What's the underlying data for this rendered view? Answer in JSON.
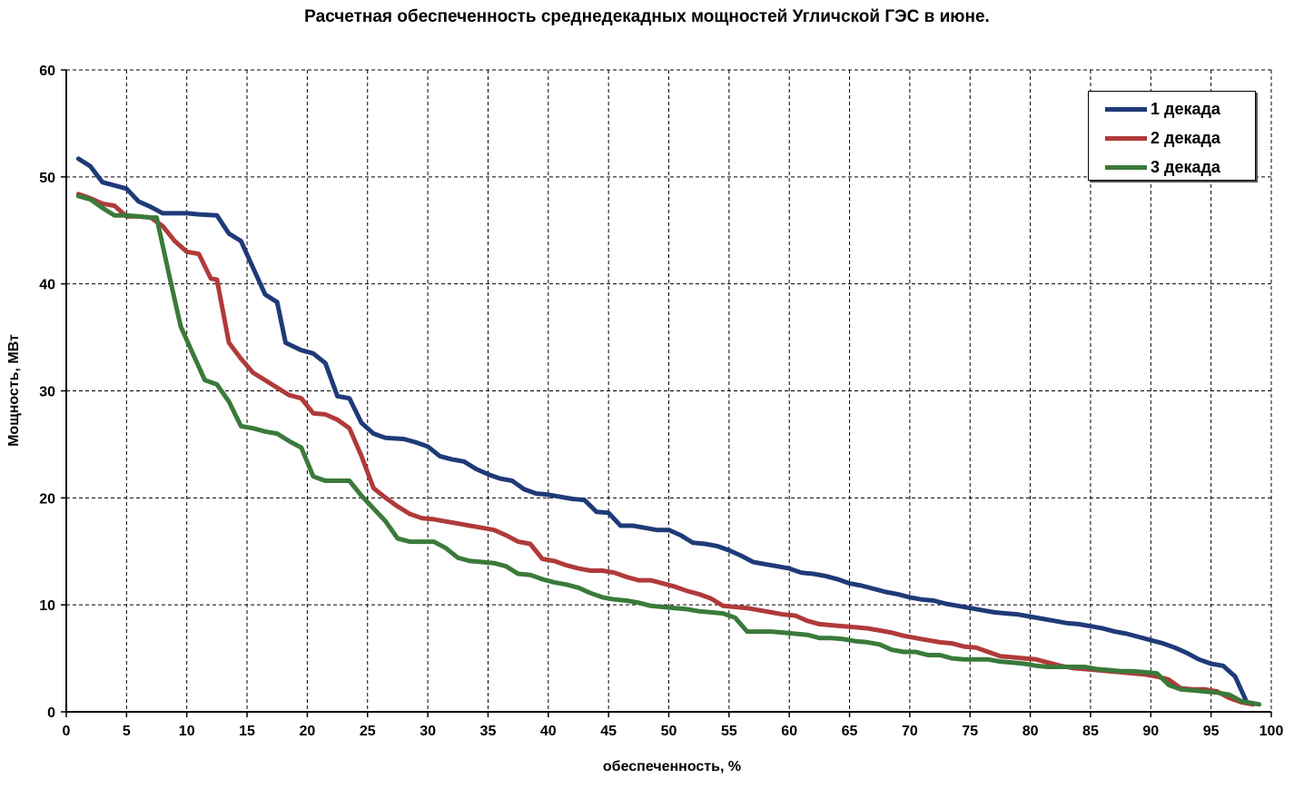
{
  "chart_data": {
    "type": "line",
    "title": "Расчетная обеспеченность среднедекадных мощностей Угличской ГЭС в июне.",
    "xlabel": "обеспеченность,  %",
    "ylabel": "Мощность, МВт",
    "xlim": [
      0,
      100
    ],
    "ylim": [
      0,
      60
    ],
    "xticks": [
      "0",
      "5",
      "10",
      "15",
      "20",
      "25",
      "30",
      "35",
      "40",
      "45",
      "50",
      "55",
      "60",
      "65",
      "70",
      "75",
      "80",
      "85",
      "90",
      "95",
      "100"
    ],
    "yticks": [
      "0",
      "10",
      "20",
      "30",
      "40",
      "50",
      "60"
    ],
    "grid": true,
    "legend_position": "top-right",
    "series": [
      {
        "name": "1 декада",
        "color": "#1f3a78",
        "x": [
          1,
          2,
          3,
          5,
          6,
          7,
          8,
          10,
          11,
          12.5,
          13.5,
          14.5,
          15.5,
          16.5,
          17.5,
          18.2,
          19.5,
          20.5,
          21.5,
          22.5,
          23.5,
          24.5,
          25.5,
          26.5,
          28,
          29,
          30,
          31,
          32,
          33,
          34,
          35,
          36,
          37,
          38,
          39,
          40,
          41,
          42,
          43,
          44,
          45,
          46,
          47,
          48,
          49,
          50,
          51,
          52,
          53,
          54,
          55,
          56,
          57,
          58,
          59,
          60,
          61,
          62,
          63,
          64,
          65,
          66,
          67,
          68,
          69,
          70,
          71,
          72,
          73,
          74,
          75,
          76,
          77,
          78,
          79,
          80,
          81,
          82,
          83,
          84,
          85,
          86,
          87,
          88,
          89,
          90,
          91,
          92,
          93,
          94,
          95,
          96,
          97,
          98
        ],
        "values": [
          51.7,
          51.0,
          49.5,
          48.9,
          47.7,
          47.2,
          46.6,
          46.6,
          46.5,
          46.4,
          44.7,
          44.0,
          41.5,
          39.0,
          38.3,
          34.5,
          33.8,
          33.5,
          32.6,
          29.5,
          29.3,
          27.0,
          26.0,
          25.6,
          25.5,
          25.2,
          24.8,
          23.9,
          23.6,
          23.4,
          22.7,
          22.2,
          21.8,
          21.6,
          20.8,
          20.4,
          20.3,
          20.1,
          19.9,
          19.8,
          18.7,
          18.6,
          17.4,
          17.4,
          17.2,
          17.0,
          17.0,
          16.5,
          15.8,
          15.7,
          15.5,
          15.1,
          14.6,
          14.0,
          13.8,
          13.6,
          13.4,
          13.0,
          12.9,
          12.7,
          12.4,
          12.0,
          11.8,
          11.5,
          11.2,
          11.0,
          10.7,
          10.5,
          10.4,
          10.1,
          9.9,
          9.7,
          9.5,
          9.3,
          9.2,
          9.1,
          8.9,
          8.7,
          8.5,
          8.3,
          8.2,
          8.0,
          7.8,
          7.5,
          7.3,
          7.0,
          6.7,
          6.4,
          6.0,
          5.5,
          4.9,
          4.5,
          4.3,
          3.3,
          0.8
        ]
      },
      {
        "name": "2 декада",
        "color": "#b03a3a",
        "x": [
          1,
          2,
          3,
          4,
          5,
          6,
          7,
          8,
          9,
          10,
          11,
          12,
          12.5,
          13.5,
          14.5,
          15.5,
          16.5,
          17.5,
          18.5,
          19.5,
          20.5,
          21.5,
          22.5,
          23.5,
          24.5,
          25.5,
          26.5,
          27.5,
          28.5,
          29.5,
          30.5,
          31.5,
          32.5,
          33.5,
          34.5,
          35.5,
          36.5,
          37.5,
          38.5,
          39.5,
          40.5,
          41.5,
          42.5,
          43.5,
          44.5,
          45.5,
          46.5,
          47.5,
          48.5,
          49.5,
          50.5,
          51.5,
          52.5,
          53.5,
          54.5,
          55.5,
          56.5,
          57.5,
          58.5,
          59.5,
          60.5,
          61.5,
          62.5,
          63.5,
          64.5,
          65.5,
          66.5,
          67.5,
          68.5,
          69.5,
          70.5,
          71.5,
          72.5,
          73.5,
          74.5,
          75.5,
          76.5,
          77.5,
          78.5,
          79.5,
          80.5,
          81.5,
          82.5,
          83.5,
          84.5,
          85.5,
          86.5,
          87.5,
          88.5,
          89.5,
          90.5,
          91.5,
          92.5,
          93.5,
          94.5,
          95.5,
          96.5,
          97.5,
          98.5
        ],
        "values": [
          48.4,
          48.0,
          47.5,
          47.3,
          46.3,
          46.3,
          46.2,
          45.4,
          44.0,
          43.0,
          42.8,
          40.5,
          40.4,
          34.5,
          33.0,
          31.7,
          31.0,
          30.3,
          29.6,
          29.3,
          27.9,
          27.8,
          27.3,
          26.5,
          23.9,
          20.9,
          20.0,
          19.2,
          18.5,
          18.1,
          18.0,
          17.8,
          17.6,
          17.4,
          17.2,
          17.0,
          16.5,
          15.9,
          15.7,
          14.3,
          14.1,
          13.7,
          13.4,
          13.2,
          13.2,
          13.0,
          12.6,
          12.3,
          12.3,
          12.0,
          11.7,
          11.3,
          11.0,
          10.6,
          9.9,
          9.8,
          9.7,
          9.5,
          9.3,
          9.1,
          9.0,
          8.5,
          8.2,
          8.1,
          8.0,
          7.9,
          7.8,
          7.6,
          7.4,
          7.1,
          6.9,
          6.7,
          6.5,
          6.4,
          6.1,
          6.0,
          5.6,
          5.2,
          5.1,
          5.0,
          4.9,
          4.6,
          4.3,
          4.1,
          4.0,
          3.9,
          3.8,
          3.7,
          3.6,
          3.5,
          3.3,
          3.0,
          2.2,
          2.1,
          2.1,
          1.9,
          1.3,
          0.9,
          0.7
        ]
      },
      {
        "name": "3 декада",
        "color": "#3a7a3a",
        "x": [
          1,
          2,
          3,
          4,
          5,
          6,
          7,
          7.5,
          8.5,
          9.5,
          10.5,
          11.5,
          12.5,
          13.5,
          14.5,
          15.5,
          16.5,
          17.5,
          18.5,
          19.5,
          20.5,
          21.5,
          22.5,
          23.5,
          24.5,
          25.5,
          26.5,
          27.5,
          28.5,
          29.5,
          30.5,
          31.5,
          32.5,
          33.5,
          34.5,
          35.5,
          36.5,
          37.5,
          38.5,
          39.5,
          40.5,
          41.5,
          42.5,
          43.5,
          44.5,
          45.5,
          46.5,
          47.5,
          48.5,
          49.5,
          50.5,
          51.5,
          52.5,
          53.5,
          54.5,
          55.5,
          56.5,
          57.5,
          58.5,
          59.5,
          60.5,
          61.5,
          62.5,
          63.5,
          64.5,
          65.5,
          66.5,
          67.5,
          68.5,
          69.5,
          70.5,
          71.5,
          72.5,
          73.5,
          74.5,
          75.5,
          76.5,
          77.5,
          78.5,
          79.5,
          80.5,
          81.5,
          82.5,
          83.5,
          84.5,
          85.5,
          86.5,
          87.5,
          88.5,
          89.5,
          90.5,
          91.5,
          92.5,
          93.5,
          94.5,
          95.5,
          96.5,
          97.5,
          98.5,
          99
        ],
        "values": [
          48.2,
          47.9,
          47.1,
          46.4,
          46.4,
          46.3,
          46.2,
          46.2,
          41.0,
          36.0,
          33.5,
          31.0,
          30.6,
          29.0,
          26.7,
          26.5,
          26.2,
          26.0,
          25.3,
          24.7,
          22.0,
          21.6,
          21.6,
          21.6,
          20.2,
          19.0,
          17.8,
          16.2,
          15.9,
          15.9,
          15.9,
          15.3,
          14.4,
          14.1,
          14.0,
          13.9,
          13.6,
          12.9,
          12.8,
          12.4,
          12.1,
          11.9,
          11.6,
          11.1,
          10.7,
          10.5,
          10.4,
          10.2,
          9.9,
          9.8,
          9.7,
          9.6,
          9.4,
          9.3,
          9.2,
          8.8,
          7.5,
          7.5,
          7.5,
          7.4,
          7.3,
          7.2,
          6.9,
          6.9,
          6.8,
          6.6,
          6.5,
          6.3,
          5.8,
          5.6,
          5.6,
          5.3,
          5.3,
          5.0,
          4.9,
          4.9,
          4.9,
          4.7,
          4.6,
          4.5,
          4.3,
          4.2,
          4.2,
          4.2,
          4.2,
          4.0,
          3.9,
          3.8,
          3.8,
          3.7,
          3.6,
          2.5,
          2.1,
          2.0,
          1.9,
          1.8,
          1.6,
          1.0,
          0.8,
          0.7
        ]
      }
    ]
  }
}
